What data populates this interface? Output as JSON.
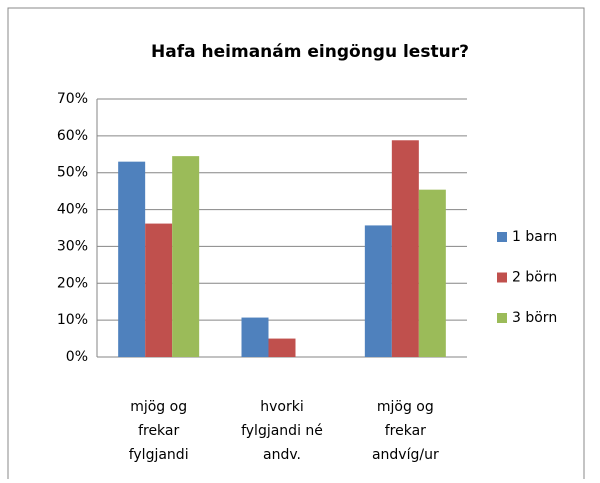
{
  "chart_data": {
    "type": "bar",
    "title": "Hafa heimanám eingöngu lestur?",
    "categories": [
      [
        "mjög og",
        "frekar",
        "fylgjandi"
      ],
      [
        "hvorki",
        "fylgjandi né",
        "andv."
      ],
      [
        "mjög og",
        "frekar",
        "andvíg/ur"
      ]
    ],
    "series": [
      {
        "name": "1 barn",
        "color": "#4f81bd",
        "values": [
          53,
          10.7,
          35.7
        ]
      },
      {
        "name": "2 börn",
        "color": "#c0504d",
        "values": [
          36.2,
          5,
          58.8
        ]
      },
      {
        "name": "3 börn",
        "color": "#9bbb59",
        "values": [
          54.5,
          0,
          45.4
        ]
      }
    ],
    "ylim": [
      0,
      70
    ],
    "yticks": [
      {
        "value": 0,
        "label": "0%"
      },
      {
        "value": 10,
        "label": "10%"
      },
      {
        "value": 20,
        "label": "20%"
      },
      {
        "value": 30,
        "label": "30%"
      },
      {
        "value": 40,
        "label": "40%"
      },
      {
        "value": 50,
        "label": "50%"
      },
      {
        "value": 60,
        "label": "60%"
      },
      {
        "value": 70,
        "label": "70%"
      }
    ],
    "grid": true,
    "legend": "right"
  }
}
